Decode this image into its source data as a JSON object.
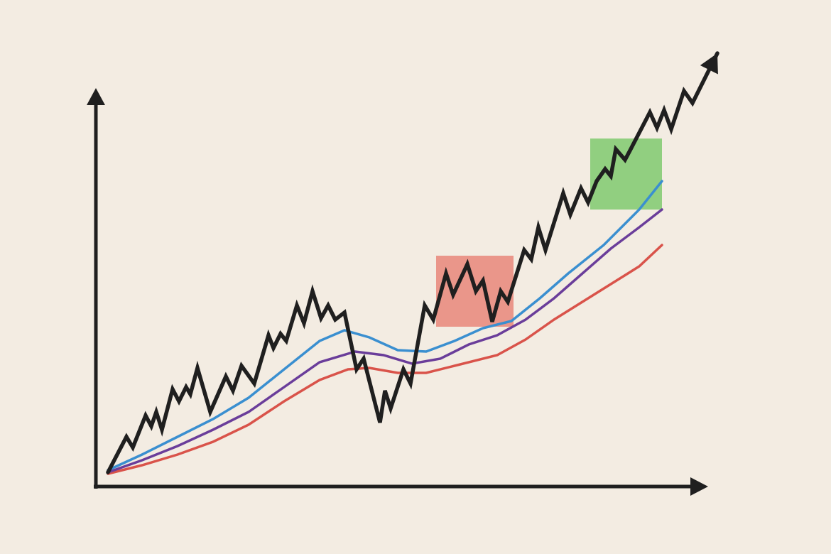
{
  "chart_data": {
    "type": "line",
    "xlim": [
      0,
      875
    ],
    "ylim": [
      0,
      620
    ],
    "series": [
      {
        "color": "#d9534a",
        "x": [
          17,
          65,
          115,
          165,
          215,
          265,
          315,
          355,
          385,
          425,
          465,
          505,
          565,
          605,
          645,
          685,
          725,
          765,
          797
        ],
        "values": [
          18,
          30,
          45,
          63,
          87,
          120,
          150,
          165,
          167,
          160,
          160,
          170,
          185,
          207,
          235,
          260,
          285,
          310,
          340
        ]
      },
      {
        "color": "#6a3d9a",
        "x": [
          17,
          65,
          115,
          165,
          215,
          265,
          315,
          365,
          405,
          445,
          485,
          525,
          565,
          605,
          645,
          685,
          725,
          765,
          797
        ],
        "values": [
          20,
          37,
          57,
          80,
          105,
          140,
          175,
          190,
          185,
          173,
          180,
          200,
          213,
          235,
          265,
          300,
          335,
          365,
          390
        ]
      },
      {
        "color": "#3a8fd0",
        "x": [
          17,
          65,
          115,
          165,
          215,
          265,
          315,
          350,
          385,
          425,
          465,
          505,
          545,
          585,
          625,
          665,
          715,
          765,
          797
        ],
        "values": [
          23,
          45,
          70,
          95,
          125,
          165,
          205,
          220,
          210,
          192,
          190,
          205,
          223,
          233,
          265,
          300,
          340,
          390,
          430
        ]
      },
      {
        "color": "#1f1f1f",
        "x": [
          17,
          43,
          52,
          70,
          78,
          85,
          93,
          108,
          117,
          127,
          133,
          143,
          161,
          183,
          193,
          205,
          223,
          243,
          250,
          260,
          268,
          283,
          293,
          305,
          317,
          327,
          337,
          350,
          367,
          377,
          400,
          407,
          415,
          433,
          443,
          463,
          475,
          493,
          503,
          523,
          535,
          545,
          558,
          570,
          580,
          603,
          613,
          623,
          633,
          658,
          668,
          683,
          693,
          705,
          717,
          725,
          732,
          745,
          753,
          780,
          790,
          800,
          810,
          828,
          840,
          875
        ],
        "values": [
          20,
          70,
          55,
          100,
          85,
          105,
          80,
          137,
          120,
          140,
          130,
          167,
          105,
          155,
          135,
          170,
          145,
          213,
          195,
          215,
          205,
          255,
          230,
          275,
          237,
          255,
          235,
          245,
          165,
          180,
          90,
          135,
          110,
          165,
          145,
          255,
          235,
          300,
          270,
          313,
          275,
          290,
          232,
          275,
          260,
          333,
          320,
          365,
          333,
          413,
          383,
          420,
          400,
          430,
          447,
          437,
          475,
          460,
          475,
          527,
          505,
          530,
          503,
          557,
          540,
          610
        ]
      }
    ]
  }
}
